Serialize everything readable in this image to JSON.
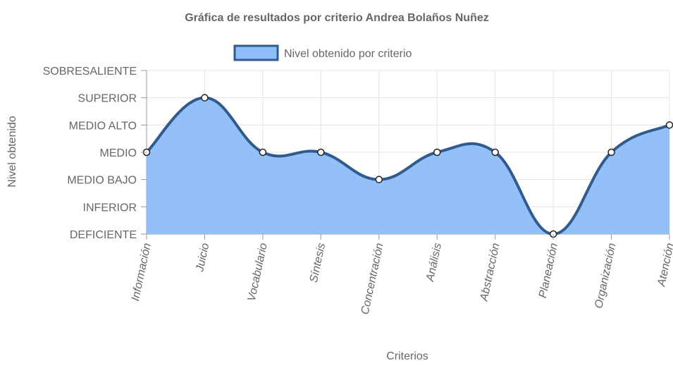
{
  "chart_data": {
    "type": "area",
    "title": "Gráfica de resultados por criterio Andrea Bolaños Nuñez",
    "xlabel": "Criterios",
    "ylabel": "Nivel obtenido",
    "categories": [
      "Información",
      "Juicio",
      "Vocabulario",
      "Síntesis",
      "Concentración",
      "Análisis",
      "Abstracción",
      "Planeación",
      "Organización",
      "Atención"
    ],
    "y_levels": [
      "DEFICIENTE",
      "INFERIOR",
      "MEDIO BAJO",
      "MEDIO",
      "MEDIO ALTO",
      "SUPERIOR",
      "SOBRESALIENTE"
    ],
    "series": [
      {
        "name": "Nivel obtenido por criterio",
        "values": [
          "MEDIO",
          "SUPERIOR",
          "MEDIO",
          "MEDIO",
          "MEDIO BAJO",
          "MEDIO",
          "MEDIO",
          "DEFICIENTE",
          "MEDIO",
          "MEDIO ALTO"
        ]
      }
    ],
    "legend_position": "top",
    "grid": true,
    "colors": {
      "fill": "#8dbdf7",
      "line": "#2f5b8f",
      "grid": "#e3e3e3",
      "axis": "#9a9a9a",
      "text": "#666666"
    }
  }
}
